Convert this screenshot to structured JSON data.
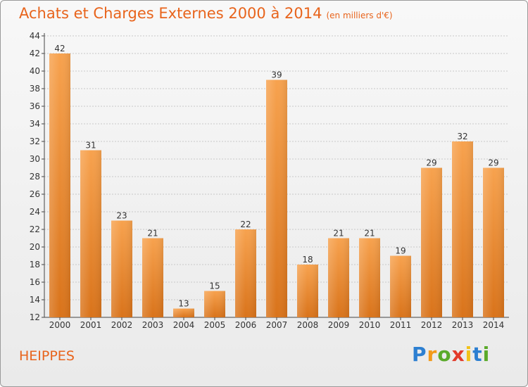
{
  "page": {
    "title": "Achats et Charges Externes 2000 à 2014",
    "unit": "(en milliers d'€)",
    "commune": "HEIPPES",
    "logo": "Proxiti"
  },
  "colors": {
    "accent": "#e8641c",
    "bar_top": "#f7a24e",
    "bar_bottom": "#d9731a",
    "grid": "#c8c8c8"
  },
  "chart_data": {
    "type": "bar",
    "title": "Achats et Charges Externes 2000 à 2014",
    "subtitle": "(en milliers d'€)",
    "categories": [
      "2000",
      "2001",
      "2002",
      "2003",
      "2004",
      "2005",
      "2006",
      "2007",
      "2008",
      "2009",
      "2010",
      "2011",
      "2012",
      "2013",
      "2014"
    ],
    "values": [
      42,
      31,
      23,
      21,
      13,
      15,
      22,
      39,
      18,
      21,
      21,
      19,
      29,
      32,
      29
    ],
    "ylim": [
      12,
      44
    ],
    "yticks": [
      12,
      14,
      16,
      18,
      20,
      22,
      24,
      26,
      28,
      30,
      32,
      34,
      36,
      38,
      40,
      42,
      44
    ],
    "grid": true,
    "xlabel": "",
    "ylabel": ""
  }
}
